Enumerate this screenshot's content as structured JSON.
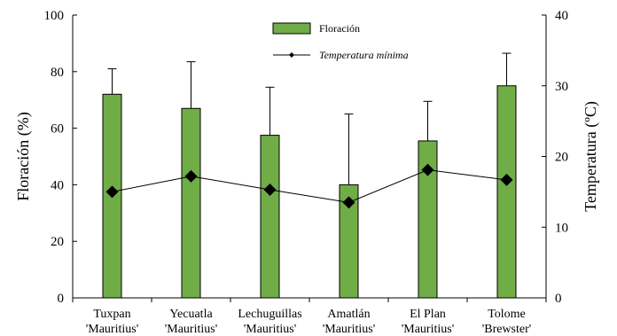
{
  "chart_data": {
    "type": "bar",
    "categories": [
      [
        "Tuxpan",
        "'Mauritius'"
      ],
      [
        "Yecuatla",
        "'Mauritius'"
      ],
      [
        "Lechuguillas",
        "'Mauritius'"
      ],
      [
        "Amatlán",
        "'Mauritius'"
      ],
      [
        "El Plan",
        "'Mauritius'"
      ],
      [
        "Tolome",
        "'Brewster'"
      ]
    ],
    "series": [
      {
        "name": "Floración",
        "type": "bar",
        "axis": "left",
        "color": "#70ad47",
        "values": [
          72,
          67,
          57.5,
          40,
          55.5,
          75
        ],
        "error_upper": [
          81,
          83.5,
          74.5,
          65,
          69.5,
          86.5
        ]
      },
      {
        "name": "Temperatura mínima",
        "type": "line",
        "axis": "right",
        "color": "#000000",
        "marker": "diamond",
        "values": [
          15,
          17.2,
          15.3,
          13.5,
          18.1,
          16.7
        ]
      }
    ],
    "y_left": {
      "label": "Floración (%)",
      "ylim": [
        0,
        100
      ],
      "ticks": [
        "0",
        "20",
        "40",
        "60",
        "80",
        "100"
      ]
    },
    "y_right": {
      "label": "Temperatura (ºC)",
      "ylim": [
        0,
        40
      ],
      "ticks": [
        "0",
        "10",
        "20",
        "30",
        "40"
      ]
    },
    "legend": {
      "position": "top-center",
      "entries": [
        "Floración",
        "Temperatura mínima"
      ]
    },
    "grid": false
  }
}
